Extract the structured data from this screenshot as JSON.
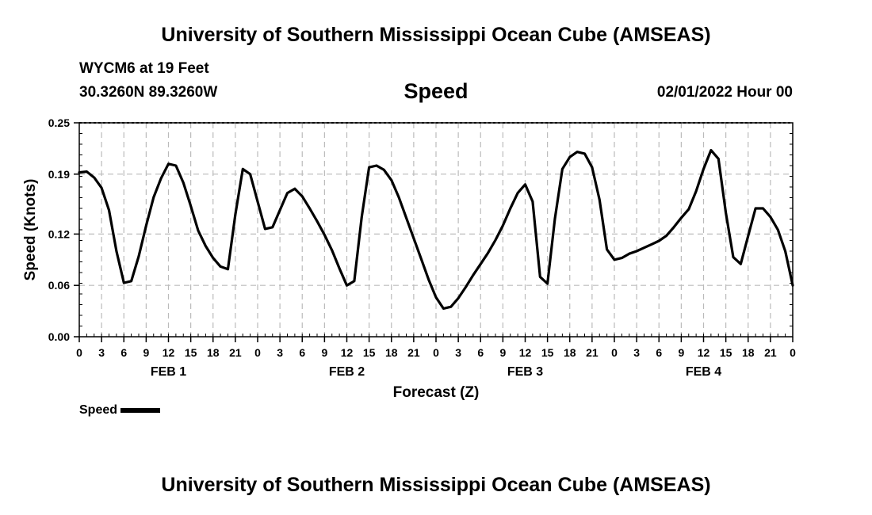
{
  "title": "University of Southern Mississippi Ocean Cube (AMSEAS)",
  "footer_title": "University of Southern Mississippi Ocean Cube (AMSEAS)",
  "station": "WYCM6 at 19 Feet",
  "location": "30.3260N  89.3260W",
  "subtitle": "Speed",
  "timestamp": "02/01/2022 Hour 00",
  "legend": {
    "label": "Speed",
    "color": "#000000"
  },
  "chart_data": {
    "type": "line",
    "title": "Speed",
    "xlabel": "Forecast (Z)",
    "ylabel": "Speed (Knots)",
    "xlim": [
      0,
      96
    ],
    "ylim": [
      0,
      0.25
    ],
    "y_ticks": [
      0.0,
      0.06,
      0.12,
      0.19,
      0.25
    ],
    "y_tick_labels": [
      "0.00",
      "0.06",
      "0.12",
      "0.19",
      "0.25"
    ],
    "x_ticks": [
      0,
      3,
      6,
      9,
      12,
      15,
      18,
      21,
      24,
      27,
      30,
      33,
      36,
      39,
      42,
      45,
      48,
      51,
      54,
      57,
      60,
      63,
      66,
      69,
      72,
      75,
      78,
      81,
      84,
      87,
      90,
      93,
      96
    ],
    "x_tick_labels": [
      "0",
      "3",
      "6",
      "9",
      "12",
      "15",
      "18",
      "21",
      "0",
      "3",
      "6",
      "9",
      "12",
      "15",
      "18",
      "21",
      "0",
      "3",
      "6",
      "9",
      "12",
      "15",
      "18",
      "21",
      "0",
      "3",
      "6",
      "9",
      "12",
      "15",
      "18",
      "21",
      "0"
    ],
    "day_labels": [
      {
        "label": "FEB 1",
        "hour": 12
      },
      {
        "label": "FEB 2",
        "hour": 36
      },
      {
        "label": "FEB 3",
        "hour": 60
      },
      {
        "label": "FEB 4",
        "hour": 84
      }
    ],
    "grid": true,
    "series": [
      {
        "name": "Speed",
        "color": "#000000",
        "x": [
          0,
          1,
          2,
          3,
          4,
          5,
          6,
          7,
          8,
          9,
          10,
          11,
          12,
          13,
          14,
          15,
          16,
          17,
          18,
          19,
          20,
          21,
          22,
          23,
          24,
          25,
          26,
          27,
          28,
          29,
          30,
          31,
          32,
          33,
          34,
          35,
          36,
          37,
          38,
          39,
          40,
          41,
          42,
          43,
          44,
          45,
          46,
          47,
          48,
          49,
          50,
          51,
          52,
          53,
          54,
          55,
          56,
          57,
          58,
          59,
          60,
          61,
          62,
          63,
          64,
          65,
          66,
          67,
          68,
          69,
          70,
          71,
          72,
          73,
          74,
          75,
          76,
          77,
          78,
          79,
          80,
          81,
          82,
          83,
          84,
          85,
          86,
          87,
          88,
          89,
          90,
          91,
          92,
          93,
          94,
          95,
          96
        ],
        "values": [
          0.192,
          0.193,
          0.186,
          0.174,
          0.148,
          0.1,
          0.063,
          0.065,
          0.094,
          0.13,
          0.163,
          0.185,
          0.202,
          0.2,
          0.18,
          0.153,
          0.124,
          0.106,
          0.092,
          0.082,
          0.079,
          0.143,
          0.196,
          0.19,
          0.158,
          0.126,
          0.128,
          0.148,
          0.168,
          0.173,
          0.164,
          0.15,
          0.135,
          0.119,
          0.101,
          0.08,
          0.06,
          0.065,
          0.14,
          0.198,
          0.2,
          0.195,
          0.183,
          0.163,
          0.139,
          0.115,
          0.091,
          0.067,
          0.046,
          0.033,
          0.035,
          0.045,
          0.058,
          0.072,
          0.085,
          0.098,
          0.113,
          0.13,
          0.15,
          0.168,
          0.178,
          0.158,
          0.07,
          0.062,
          0.138,
          0.196,
          0.21,
          0.216,
          0.214,
          0.198,
          0.16,
          0.102,
          0.09,
          0.092,
          0.097,
          0.1,
          0.104,
          0.108,
          0.112,
          0.118,
          0.128,
          0.139,
          0.149,
          0.17,
          0.196,
          0.218,
          0.208,
          0.145,
          0.093,
          0.085,
          0.118,
          0.15,
          0.15,
          0.14,
          0.125,
          0.1,
          0.06
        ]
      }
    ]
  }
}
